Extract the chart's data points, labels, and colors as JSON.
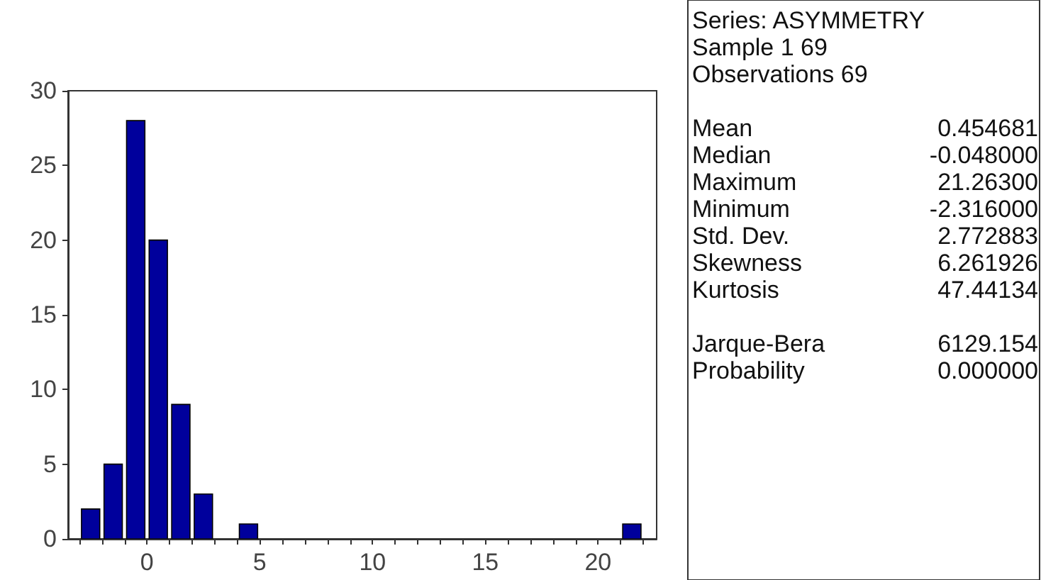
{
  "chart_data": {
    "type": "histogram",
    "bins": [
      -3,
      -2,
      -1,
      0,
      1,
      2,
      3,
      4,
      5,
      6,
      7,
      8,
      9,
      10,
      11,
      12,
      13,
      14,
      15,
      16,
      17,
      18,
      19,
      20,
      21,
      22
    ],
    "values": [
      2,
      5,
      28,
      20,
      9,
      3,
      0,
      1,
      0,
      0,
      0,
      0,
      0,
      0,
      0,
      0,
      0,
      0,
      0,
      0,
      0,
      0,
      0,
      0,
      1
    ],
    "color": "#00009c",
    "xlim": [
      -3.5,
      22.6
    ],
    "xticks": [
      {
        "value": -3,
        "label": null
      },
      {
        "value": -2,
        "label": null
      },
      {
        "value": -1,
        "label": null
      },
      0,
      {
        "value": 1,
        "label": null
      },
      {
        "value": 2,
        "label": null
      },
      {
        "value": 3,
        "label": null
      },
      {
        "value": 4,
        "label": null
      },
      5,
      {
        "value": 6,
        "label": null
      },
      {
        "value": 7,
        "label": null
      },
      {
        "value": 8,
        "label": null
      },
      {
        "value": 9,
        "label": null
      },
      10,
      {
        "value": 11,
        "label": null
      },
      {
        "value": 12,
        "label": null
      },
      {
        "value": 13,
        "label": null
      },
      {
        "value": 14,
        "label": null
      },
      15,
      {
        "value": 16,
        "label": null
      },
      {
        "value": 17,
        "label": null
      },
      {
        "value": 18,
        "label": null
      },
      {
        "value": 19,
        "label": null
      },
      20,
      {
        "value": 21,
        "label": null
      },
      {
        "value": 22,
        "label": null
      }
    ],
    "ylim": [
      0,
      30
    ],
    "yticks": [
      0,
      5,
      10,
      15,
      20,
      25,
      30
    ],
    "annotations": [
      "Series: ASYMMETRY\nSample 1 69\nObservations 69",
      "Mean\t0.454681\nMedian\t-0.048000\nMaximum\t21.26300\nMinimum\t-2.316000\nStd. Dev.\t2.772883\nSkewness\t6.261926\nKurtosis\t47.44134",
      "Jarque-Bera\t6129.154\nProbability\t0.000000"
    ]
  }
}
